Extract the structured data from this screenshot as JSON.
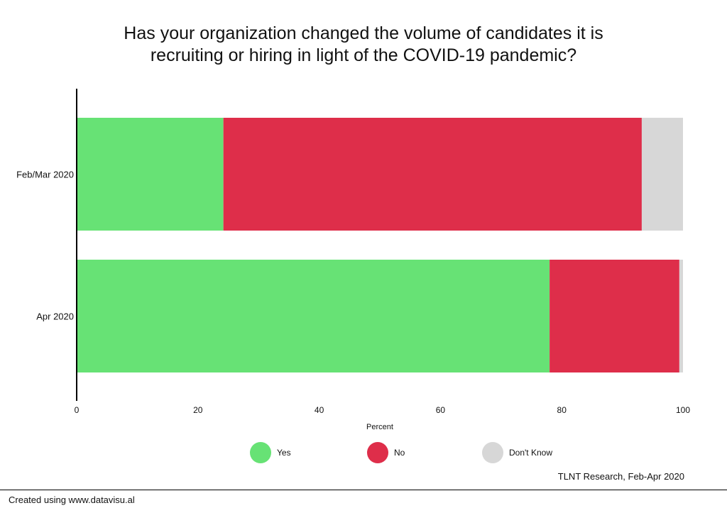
{
  "chart_data": {
    "type": "bar",
    "orientation": "horizontal",
    "stacked": true,
    "title_lines": [
      "Has your organization changed the volume of candidates it is",
      "recruiting or hiring in light of the COVID-19 pandemic?"
    ],
    "categories": [
      "Feb/Mar 2020",
      "Apr 2020"
    ],
    "series": [
      {
        "name": "Yes",
        "values": [
          24.2,
          78.0
        ],
        "color": "#67e275"
      },
      {
        "name": "No",
        "values": [
          69.0,
          21.4
        ],
        "color": "#de2e4a"
      },
      {
        "name": "Don't Know",
        "values": [
          6.8,
          0.6
        ],
        "color": "#d7d7d7"
      }
    ],
    "xlabel": "Percent",
    "xlim": [
      0,
      100
    ],
    "xticks": [
      0,
      20,
      40,
      60,
      80,
      100
    ],
    "legend_position": "bottom",
    "grid": false
  },
  "source": "TLNT Research, Feb-Apr 2020",
  "footer": "Created using www.datavisu.al"
}
